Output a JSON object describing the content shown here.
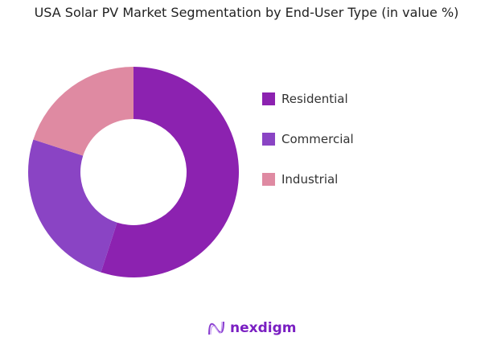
{
  "chart_data": {
    "type": "pie",
    "donut": true,
    "title": "USA Solar PV Market Segmentation by End-User Type (in value %)",
    "categories": [
      "Residential",
      "Commercial",
      "Industrial"
    ],
    "values": [
      55,
      25,
      20
    ],
    "colors": [
      "#8c22b0",
      "#8a44c4",
      "#df8aa2"
    ],
    "legend": "right"
  },
  "brand": {
    "name": "nexdigm"
  }
}
